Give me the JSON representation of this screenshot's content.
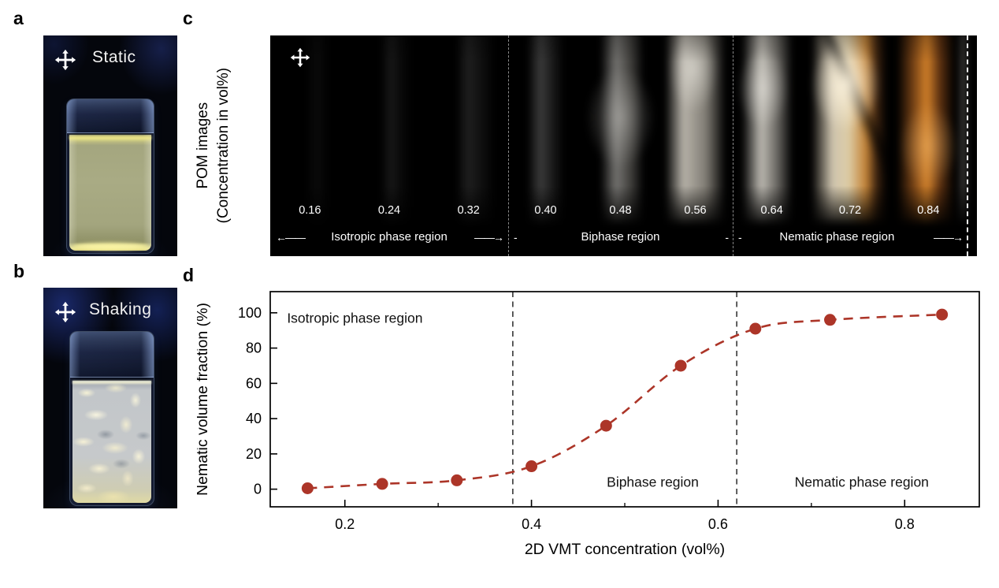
{
  "figure": {
    "panel_a": {
      "label": "a",
      "overlay_label": "Static"
    },
    "panel_b": {
      "label": "b",
      "overlay_label": "Shaking"
    },
    "panel_c": {
      "label": "c",
      "axis_label_line1": "POM images",
      "axis_label_line2": "(Concentration in vol%)",
      "regions": [
        {
          "name": "Isotropic phase region",
          "left_marker": "←——",
          "right_marker": "——→",
          "concentrations": [
            "0.16",
            "0.24",
            "0.32"
          ]
        },
        {
          "name": "Biphase region",
          "left_marker": "-",
          "right_marker": "-",
          "concentrations": [
            "0.40",
            "0.48",
            "0.56"
          ]
        },
        {
          "name": "Nematic phase region",
          "left_marker": "-",
          "right_marker": "——→",
          "concentrations": [
            "0.64",
            "0.72",
            "0.84"
          ]
        }
      ]
    },
    "panel_d": {
      "label": "d"
    }
  },
  "chart_data": {
    "type": "scatter",
    "x": [
      0.16,
      0.24,
      0.32,
      0.4,
      0.48,
      0.56,
      0.64,
      0.72,
      0.84
    ],
    "values": [
      0.5,
      3,
      5,
      13,
      36,
      70,
      91,
      96,
      99
    ],
    "series_name": "Nematic volume fraction",
    "xlabel": "2D VMT concentration (vol%)",
    "ylabel": "Nematic volume fraction (%)",
    "xlim": [
      0.12,
      0.88
    ],
    "ylim": [
      -10,
      112
    ],
    "xticks": [
      0.2,
      0.4,
      0.6,
      0.8
    ],
    "xticks_minor": [
      0.3,
      0.5,
      0.7
    ],
    "yticks": [
      0,
      20,
      40,
      60,
      80,
      100
    ],
    "phase_boundaries": [
      0.38,
      0.62
    ],
    "marker_color": "#ac3528",
    "line_color": "#ac3528",
    "line_style": "dashed",
    "boundary_color": "#1a1a1a",
    "grid": false,
    "legend": "none",
    "annotations": [
      {
        "text": "Isotropic phase region",
        "x": 0.138,
        "y": 97,
        "align": "left"
      },
      {
        "text": "Biphase region",
        "x": 0.53,
        "y": 4,
        "align": "center"
      },
      {
        "text": "Nematic phase region",
        "x": 0.754,
        "y": 4,
        "align": "center"
      }
    ]
  }
}
